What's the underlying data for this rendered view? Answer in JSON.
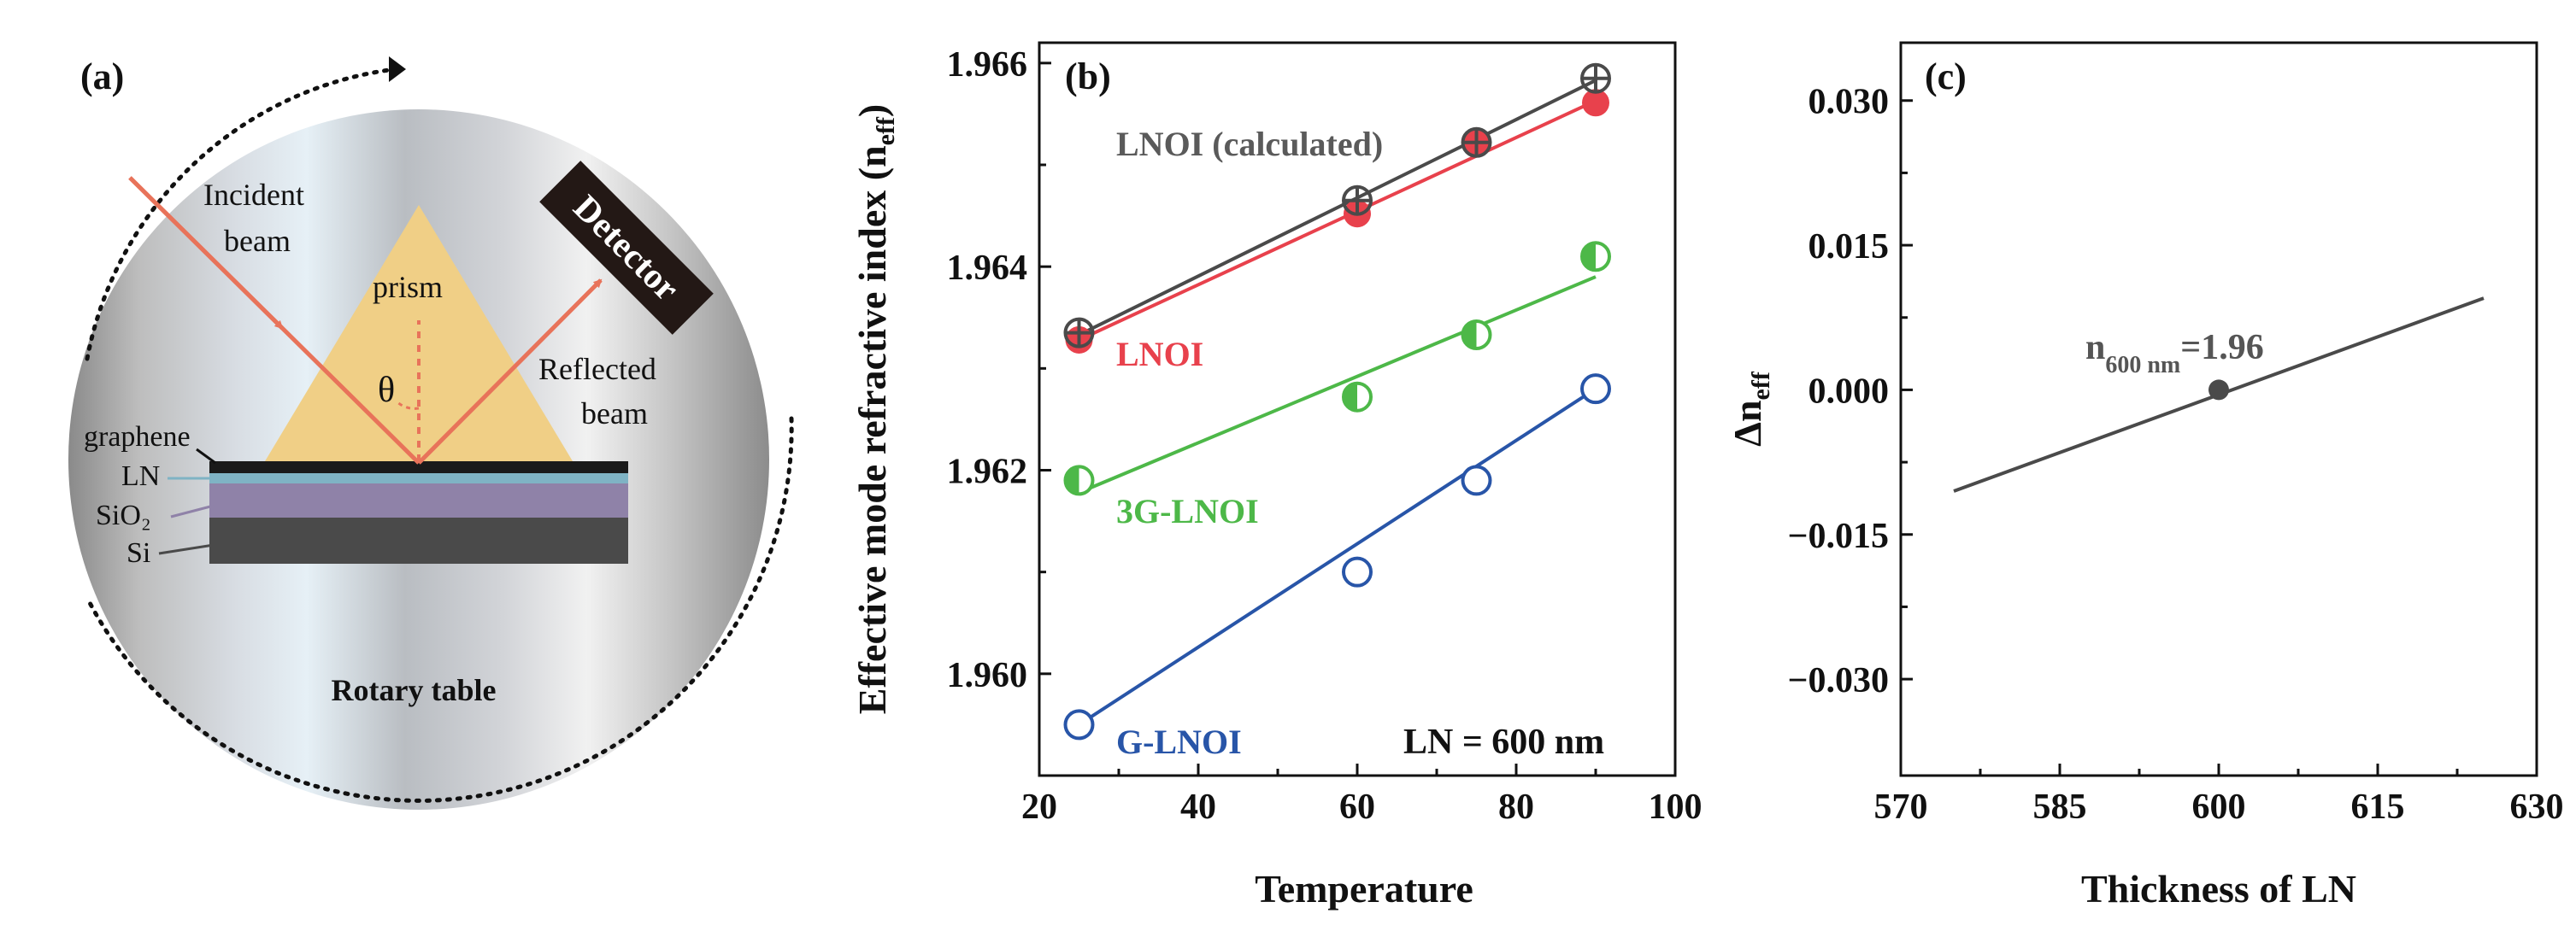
{
  "panel_a": {
    "label": "(a)",
    "incident_line1": "Incident",
    "incident_line2": "beam",
    "reflected_line1": "Reflected",
    "reflected_line2": "beam",
    "prism": "prism",
    "theta": "θ",
    "detector": "Detector",
    "graphene": "graphene",
    "ln": "LN",
    "sio2": "SiO₂",
    "si": "Si",
    "rotary": "Rotary table",
    "colors": {
      "beam": "#e8735a",
      "prism": "#f0cf86",
      "graphene_layer": "#1a1a1a",
      "ln_layer": "#7fb3c4",
      "sio2_layer": "#8f82a8",
      "si_layer": "#4a4a4a",
      "detector_bg": "#231815"
    }
  },
  "chart_data": [
    {
      "panel": "(b)",
      "type": "line",
      "xlabel": "Temperature",
      "ylabel_main": "Effective mode refractive index (n",
      "ylabel_sub": "eff",
      "ylabel_close": ")",
      "xlim": [
        20,
        100
      ],
      "ylim": [
        1.959,
        1.9662
      ],
      "xticks": [
        20,
        40,
        60,
        80,
        100
      ],
      "xtick_labels": [
        "20",
        "40",
        "60",
        "80",
        "100"
      ],
      "yticks": [
        1.96,
        1.962,
        1.964,
        1.966
      ],
      "ytick_labels": [
        "1.960",
        "1.962",
        "1.964",
        "1.966"
      ],
      "annotation": "LN = 600 nm",
      "series": [
        {
          "name": "LNOI (calculated)",
          "color": "#4a4a4a",
          "marker": "circle-plus",
          "x": [
            25,
            60,
            75,
            90
          ],
          "y": [
            1.96335,
            1.96465,
            1.96522,
            1.96585
          ],
          "fit": [
            [
              25,
              1.96333
            ],
            [
              90,
              1.96583
            ]
          ]
        },
        {
          "name": "LNOI",
          "color": "#e8414c",
          "marker": "filled-circle",
          "x": [
            25,
            60,
            75,
            90
          ],
          "y": [
            1.96328,
            1.96452,
            1.96522,
            1.96561
          ],
          "fit": [
            [
              25,
              1.96328
            ],
            [
              90,
              1.96563
            ]
          ]
        },
        {
          "name": "3G-LNOI",
          "color": "#4db848",
          "marker": "half-circle",
          "x": [
            25,
            60,
            75,
            90
          ],
          "y": [
            1.9619,
            1.96272,
            1.96333,
            1.9641
          ],
          "fit": [
            [
              25,
              1.96178
            ],
            [
              90,
              1.9639
            ]
          ]
        },
        {
          "name": "G-LNOI",
          "color": "#2855a8",
          "marker": "open-circle",
          "x": [
            25,
            60,
            75,
            90
          ],
          "y": [
            1.9595,
            1.961,
            1.9619,
            1.9628
          ],
          "fit": [
            [
              25,
              1.9595
            ],
            [
              90,
              1.9628
            ]
          ]
        }
      ]
    },
    {
      "panel": "(c)",
      "type": "line",
      "xlabel": "Thickness of LN",
      "ylabel_main": "Δn",
      "ylabel_sub": "eff",
      "xlim": [
        570,
        630
      ],
      "ylim": [
        -0.04,
        0.036
      ],
      "xticks": [
        570,
        585,
        600,
        615,
        630
      ],
      "xtick_labels": [
        "570",
        "585",
        "600",
        "615",
        "630"
      ],
      "yticks": [
        -0.03,
        -0.015,
        0.0,
        0.015,
        0.03
      ],
      "ytick_labels": [
        "−0.030",
        "−0.015",
        "0.000",
        "0.015",
        "0.030"
      ],
      "annotation_main": "n",
      "annotation_sub": "600 nm",
      "annotation_value": "=1.96",
      "series": [
        {
          "name": "Δn_eff",
          "color": "#4a4a4a",
          "x": [
            575,
            625
          ],
          "y": [
            -0.0105,
            0.0095
          ]
        }
      ],
      "marker_point": {
        "x": 600,
        "y": 0.0
      }
    }
  ]
}
